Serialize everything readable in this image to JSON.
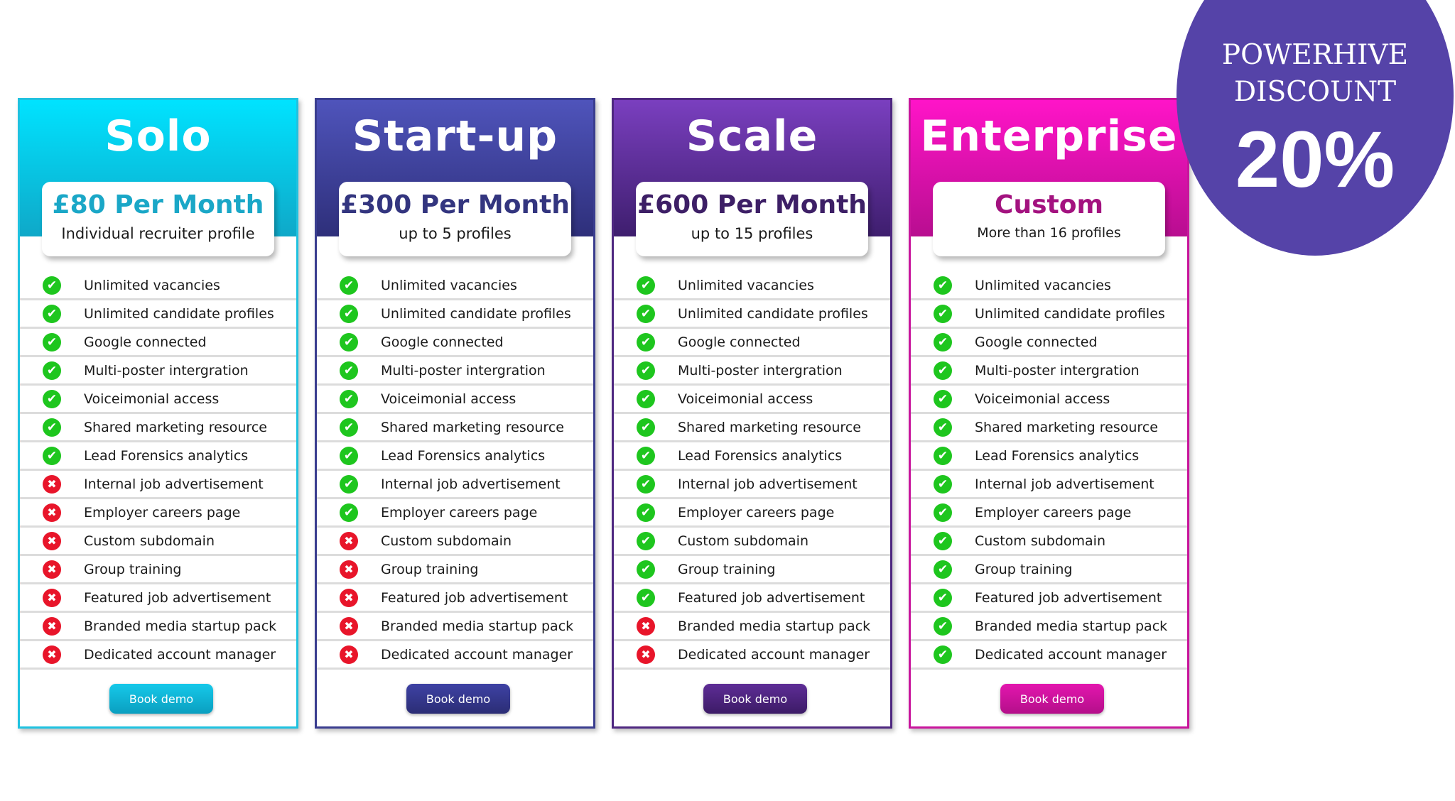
{
  "plans": [
    {
      "name": "Solo",
      "price": "£80 Per Month",
      "subtitle": "Individual recruiter profile",
      "button": "Book demo",
      "colors": {
        "accent": "#1fc2e0",
        "gradient_top": "#00e3ff",
        "gradient_bottom": "#0fa8c8",
        "price": "#1aa7c7",
        "button_top": "#16c9ea",
        "button_bottom": "#0a9fc0"
      },
      "included": [
        true,
        true,
        true,
        true,
        true,
        true,
        true,
        false,
        false,
        false,
        false,
        false,
        false,
        false
      ]
    },
    {
      "name": "Start-up",
      "price": "£300 Per Month",
      "subtitle": "up to 5 profiles",
      "button": "Book demo",
      "colors": {
        "accent": "#3a3d8f",
        "gradient_top": "#4f54bb",
        "gradient_bottom": "#2e2f7a",
        "price": "#33357f",
        "button_top": "#3e42a4",
        "button_bottom": "#2b2d75"
      },
      "included": [
        true,
        true,
        true,
        true,
        true,
        true,
        true,
        true,
        true,
        false,
        false,
        false,
        false,
        false
      ]
    },
    {
      "name": "Scale",
      "price": "£600 Per Month",
      "subtitle": "up to 15 profiles",
      "button": "Book demo",
      "colors": {
        "accent": "#4e2780",
        "gradient_top": "#7a3fbf",
        "gradient_bottom": "#3e1e6e",
        "price": "#3d1f66",
        "button_top": "#5e2d96",
        "button_bottom": "#3c1b66"
      },
      "included": [
        true,
        true,
        true,
        true,
        true,
        true,
        true,
        true,
        true,
        true,
        true,
        true,
        false,
        false
      ]
    },
    {
      "name": "Enterprise",
      "price": "Custom",
      "subtitle": "More than 16 profiles",
      "button": "Book demo",
      "colors": {
        "accent": "#c8159c",
        "gradient_top": "#ff14c8",
        "gradient_bottom": "#b80e90",
        "price": "#a3127f",
        "button_top": "#e316ae",
        "button_bottom": "#b40f8a"
      },
      "included": [
        true,
        true,
        true,
        true,
        true,
        true,
        true,
        true,
        true,
        true,
        true,
        true,
        true,
        true
      ]
    }
  ],
  "features": [
    "Unlimited vacancies",
    "Unlimited candidate profiles",
    "Google connected",
    "Multi-poster intergration",
    "Voiceimonial access",
    "Shared marketing resource",
    "Lead Forensics analytics",
    "Internal job advertisement",
    "Employer careers page",
    "Custom subdomain",
    "Group training",
    "Featured job advertisement",
    "Branded media startup pack",
    "Dedicated account manager"
  ],
  "icons": {
    "included": "check-circle-icon",
    "excluded": "x-circle-icon"
  },
  "discount_badge": {
    "line1": "POWERHIVE",
    "line2": "DISCOUNT",
    "percent": "20%",
    "color": "#5543a8"
  }
}
